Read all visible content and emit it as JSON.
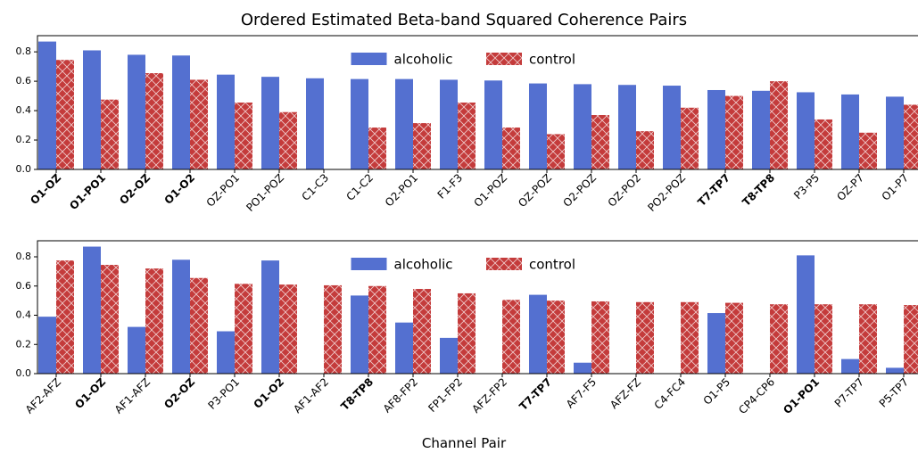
{
  "chart_data": [
    {
      "type": "bar",
      "title": "Ordered Estimated Beta-band Squared Coherence Pairs",
      "categories": [
        "O1-OZ",
        "O1-PO1",
        "O2-OZ",
        "O1-O2",
        "OZ-PO1",
        "PO1-POZ",
        "C1-C3",
        "C1-C2",
        "O2-PO1",
        "F1-F3",
        "O1-POZ",
        "OZ-POZ",
        "O2-POZ",
        "OZ-PO2",
        "PO2-POZ",
        "T7-TP7",
        "T8-TP8",
        "P3-P5",
        "OZ-P7",
        "O1-P7"
      ],
      "highlighted": [
        true,
        true,
        true,
        true,
        false,
        false,
        false,
        false,
        false,
        false,
        false,
        false,
        false,
        false,
        false,
        true,
        true,
        false,
        false,
        false
      ],
      "series": [
        {
          "name": "alcoholic",
          "color": "#5470d0",
          "values": [
            0.87,
            0.81,
            0.78,
            0.775,
            0.645,
            0.63,
            0.62,
            0.615,
            0.615,
            0.61,
            0.605,
            0.585,
            0.58,
            0.575,
            0.57,
            0.54,
            0.535,
            0.525,
            0.51,
            0.495
          ]
        },
        {
          "name": "control",
          "color": "#c43b3b",
          "hatch": "x",
          "values": [
            0.745,
            0.475,
            0.655,
            0.61,
            0.455,
            0.39,
            null,
            0.285,
            0.315,
            0.455,
            0.285,
            0.24,
            0.37,
            0.26,
            0.42,
            0.5,
            0.6,
            0.34,
            0.25,
            0.44
          ]
        }
      ],
      "ylim": [
        0,
        0.91
      ],
      "yticks": [
        {
          "value": 0,
          "label": "0.0"
        },
        0.2,
        0.4,
        0.6,
        0.8
      ],
      "legend": "upper center"
    },
    {
      "type": "bar",
      "xlabel": "Channel Pair",
      "categories": [
        "AF2-AFZ",
        "O1-OZ",
        "AF1-AFZ",
        "O2-OZ",
        "P3-PO1",
        "O1-O2",
        "AF1-AF2",
        "T8-TP8",
        "AF8-FP2",
        "FP1-FP2",
        "AFZ-FP2",
        "T7-TP7",
        "AF7-F5",
        "AFZ-FZ",
        "C4-FC4",
        "O1-P5",
        "CP4-CP6",
        "O1-PO1",
        "P7-TP7",
        "P5-TP7"
      ],
      "highlighted": [
        false,
        true,
        false,
        true,
        false,
        true,
        false,
        true,
        false,
        false,
        false,
        true,
        false,
        false,
        false,
        false,
        false,
        true,
        false,
        false
      ],
      "series": [
        {
          "name": "alcoholic",
          "color": "#5470d0",
          "values": [
            0.39,
            0.87,
            0.32,
            0.78,
            0.29,
            0.775,
            null,
            0.535,
            0.35,
            0.245,
            null,
            0.54,
            0.075,
            null,
            null,
            0.415,
            null,
            0.81,
            0.1,
            0.04
          ]
        },
        {
          "name": "control",
          "color": "#c43b3b",
          "hatch": "x",
          "values": [
            0.775,
            0.745,
            0.72,
            0.655,
            0.615,
            0.61,
            0.605,
            0.6,
            0.58,
            0.55,
            0.505,
            0.5,
            0.495,
            0.49,
            0.49,
            0.485,
            0.475,
            0.475,
            0.475,
            0.47
          ]
        }
      ],
      "ylim": [
        0,
        0.91
      ],
      "yticks": [
        {
          "value": 0,
          "label": "0.0"
        },
        0.2,
        0.4,
        0.6,
        0.8
      ],
      "legend": "upper center"
    }
  ]
}
